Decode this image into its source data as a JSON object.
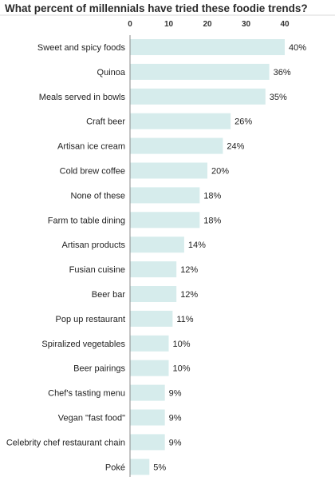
{
  "colors": {
    "bar": "#d6ecec",
    "axis": "#8a8a8a",
    "separator": "#d9d9d9"
  },
  "chart_data": {
    "type": "bar",
    "orientation": "horizontal",
    "title": "What percent of millennials have tried these foodie trends?",
    "xlim": [
      0,
      40
    ],
    "ticks": [
      0,
      10,
      20,
      30,
      40
    ],
    "tick_labels": [
      "0",
      "10",
      "20",
      "30",
      "40"
    ],
    "categories": [
      "Sweet and spicy foods",
      "Quinoa",
      "Meals served in bowls",
      "Craft beer",
      "Artisan ice cream",
      "Cold brew coffee",
      "None of these",
      "Farm to table dining",
      "Artisan products",
      "Fusian cuisine",
      "Beer bar",
      "Pop up restaurant",
      "Spiralized vegetables",
      "Beer pairings",
      "Chef's tasting menu",
      "Vegan \"fast food\"",
      "Celebrity chef restaurant chain",
      "Poké"
    ],
    "values": [
      40,
      36,
      35,
      26,
      24,
      20,
      18,
      18,
      14,
      12,
      12,
      11,
      10,
      10,
      9,
      9,
      9,
      5
    ],
    "value_labels": [
      "40%",
      "36%",
      "35%",
      "26%",
      "24%",
      "20%",
      "18%",
      "18%",
      "14%",
      "12%",
      "12%",
      "11%",
      "10%",
      "10%",
      "9%",
      "9%",
      "9%",
      "5%"
    ],
    "grid": false,
    "legend": "none"
  }
}
